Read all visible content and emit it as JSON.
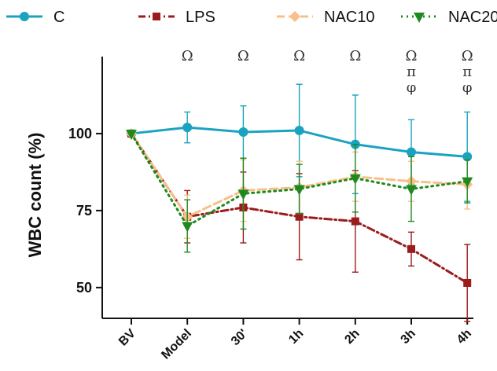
{
  "chart_data": {
    "type": "line",
    "title": "",
    "xlabel": "",
    "ylabel": "WBC count (%)",
    "categories": [
      "BV",
      "Model",
      "30'",
      "1h",
      "2h",
      "3h",
      "4h"
    ],
    "ylim": [
      40,
      125
    ],
    "yticks": [
      50,
      75,
      100
    ],
    "grid": false,
    "legend_position": "top",
    "series": [
      {
        "name": "C",
        "color": "#1aa3c0",
        "dash": "solid",
        "marker": "circle",
        "values": [
          100,
          102,
          100.5,
          101,
          96.5,
          94,
          92.5
        ],
        "errors": [
          0,
          5,
          8.5,
          15,
          16,
          10.5,
          14.5
        ]
      },
      {
        "name": "LPS",
        "color": "#9b1c1c",
        "dash": "dashdot",
        "marker": "square",
        "values": [
          100,
          73,
          76,
          73,
          71.5,
          62.5,
          51.5
        ],
        "errors": [
          0,
          8.5,
          11.5,
          14,
          16.5,
          5.5,
          12.5
        ]
      },
      {
        "name": "NAC10",
        "color": "#f7c089",
        "dash": "dashed",
        "marker": "diamond",
        "values": [
          100,
          73,
          81.5,
          82.5,
          86,
          84.5,
          83.5
        ],
        "errors": [
          0,
          7,
          10,
          8.5,
          8,
          6.5,
          8
        ]
      },
      {
        "name": "NAC20",
        "color": "#1e8a1e",
        "dash": "dotted",
        "marker": "triangle",
        "values": [
          100,
          70,
          80.5,
          82,
          85.5,
          82,
          84.5
        ],
        "errors": [
          0,
          8.5,
          11.5,
          8,
          11,
          10.5,
          7
        ]
      }
    ],
    "annotations": [
      {
        "category": "Model",
        "lines": [
          "Ω"
        ]
      },
      {
        "category": "30'",
        "lines": [
          "Ω"
        ]
      },
      {
        "category": "1h",
        "lines": [
          "Ω"
        ]
      },
      {
        "category": "2h",
        "lines": [
          "Ω"
        ]
      },
      {
        "category": "3h",
        "lines": [
          "Ω",
          "π",
          "φ"
        ]
      },
      {
        "category": "4h",
        "lines": [
          "Ω",
          "π",
          "φ"
        ]
      }
    ]
  }
}
